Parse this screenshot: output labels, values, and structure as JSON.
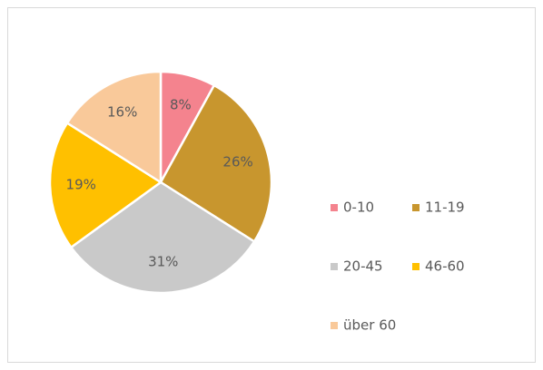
{
  "chart_data": {
    "type": "pie",
    "categories": [
      "0-10",
      "11-19",
      "20-45",
      "46-60",
      "über 60"
    ],
    "values": [
      8,
      26,
      31,
      19,
      16
    ],
    "value_labels": [
      "8%",
      "26%",
      "31%",
      "19%",
      "16%"
    ],
    "colors": [
      "#f4838e",
      "#c8962e",
      "#c9c9c9",
      "#ffc000",
      "#f9c99a"
    ],
    "legend": "right"
  }
}
